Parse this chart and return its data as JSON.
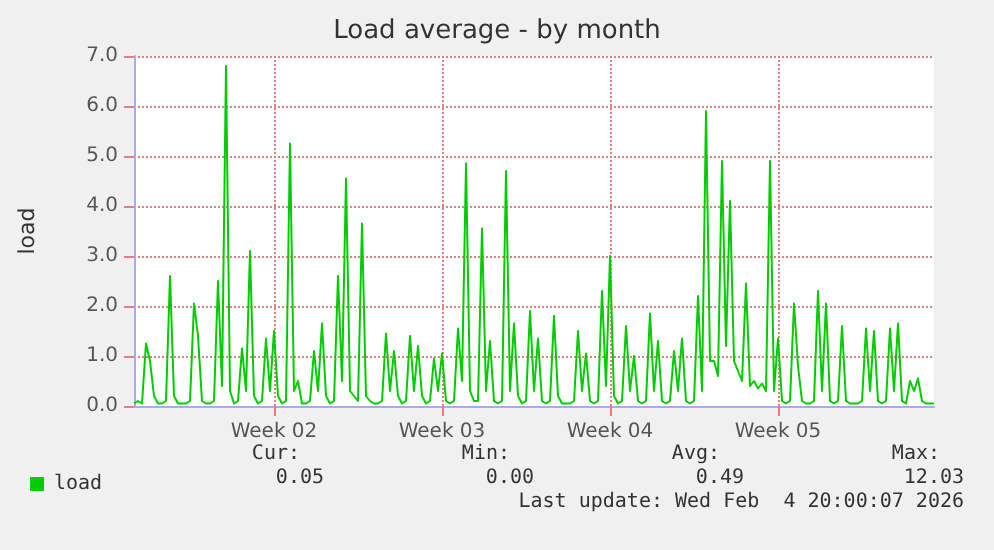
{
  "chart_data": {
    "type": "line",
    "title": "Load average - by month",
    "ylabel": "load",
    "categories": [
      null,
      null,
      null,
      null,
      null,
      null,
      null,
      null,
      null,
      null,
      null,
      null,
      null,
      null,
      null,
      null,
      null,
      null,
      null,
      null,
      null,
      null,
      null,
      null,
      null,
      null,
      null,
      null,
      null,
      null,
      null,
      null,
      null,
      null,
      null,
      "Week 02",
      null,
      null,
      null,
      null,
      null,
      null,
      null,
      null,
      null,
      null,
      null,
      null,
      null,
      null,
      null,
      null,
      null,
      null,
      null,
      null,
      null,
      null,
      null,
      null,
      null,
      null,
      null,
      null,
      null,
      null,
      null,
      null,
      null,
      null,
      null,
      null,
      null,
      null,
      null,
      null,
      null,
      "Week 03",
      null,
      null,
      null,
      null,
      null,
      null,
      null,
      null,
      null,
      null,
      null,
      null,
      null,
      null,
      null,
      null,
      null,
      null,
      null,
      null,
      null,
      null,
      null,
      null,
      null,
      null,
      null,
      null,
      null,
      null,
      null,
      null,
      null,
      null,
      null,
      null,
      null,
      null,
      null,
      null,
      null,
      "Week 04",
      null,
      null,
      null,
      null,
      null,
      null,
      null,
      null,
      null,
      null,
      null,
      null,
      null,
      null,
      null,
      null,
      null,
      null,
      null,
      null,
      null,
      null,
      null,
      null,
      null,
      null,
      null,
      null,
      null,
      null,
      null,
      null,
      null,
      null,
      null,
      null,
      null,
      null,
      null,
      null,
      null,
      "Week 05",
      null,
      null,
      null,
      null,
      null,
      null,
      null,
      null,
      null,
      null,
      null,
      null,
      null,
      null,
      null,
      null,
      null,
      null,
      null,
      null,
      null,
      null,
      null,
      null,
      null,
      null,
      null,
      null,
      null,
      null,
      null,
      null,
      null,
      null,
      null,
      null,
      null,
      null,
      null
    ],
    "series": [
      {
        "name": "load",
        "color": "#00cc00",
        "values": [
          0.05,
          0.1,
          0.05,
          1.25,
          0.9,
          0.2,
          0.05,
          0.05,
          0.1,
          2.6,
          0.2,
          0.05,
          0.05,
          0.05,
          0.1,
          2.05,
          1.4,
          0.1,
          0.05,
          0.05,
          0.1,
          2.5,
          0.4,
          6.8,
          0.3,
          0.05,
          0.1,
          1.15,
          0.3,
          3.1,
          0.2,
          0.05,
          0.1,
          1.35,
          0.3,
          1.5,
          0.2,
          0.05,
          0.1,
          5.25,
          0.3,
          0.5,
          0.05,
          0.05,
          0.1,
          1.1,
          0.3,
          1.65,
          0.2,
          0.05,
          0.1,
          2.6,
          0.5,
          4.55,
          0.3,
          0.2,
          0.1,
          3.65,
          0.2,
          0.1,
          0.05,
          0.05,
          0.1,
          1.45,
          0.3,
          1.1,
          0.2,
          0.05,
          0.1,
          1.4,
          0.3,
          1.2,
          0.2,
          0.05,
          0.1,
          0.95,
          0.3,
          1.05,
          0.1,
          0.05,
          0.1,
          1.55,
          0.5,
          4.85,
          0.3,
          0.1,
          0.1,
          3.55,
          0.3,
          1.3,
          0.1,
          0.05,
          0.1,
          4.7,
          0.3,
          1.65,
          0.2,
          0.05,
          0.1,
          1.9,
          0.3,
          1.35,
          0.1,
          0.05,
          0.1,
          1.8,
          0.2,
          0.05,
          0.05,
          0.05,
          0.1,
          1.5,
          0.3,
          1.05,
          0.1,
          0.05,
          0.1,
          2.3,
          0.4,
          3.0,
          0.2,
          0.05,
          0.1,
          1.6,
          0.3,
          1.0,
          0.1,
          0.05,
          0.1,
          1.85,
          0.3,
          1.3,
          0.1,
          0.05,
          0.1,
          1.1,
          0.3,
          1.35,
          0.1,
          0.05,
          0.1,
          2.2,
          0.3,
          5.9,
          0.9,
          0.9,
          0.6,
          4.9,
          1.2,
          4.1,
          0.9,
          0.7,
          0.5,
          2.45,
          0.4,
          0.5,
          0.35,
          0.45,
          0.3,
          4.9,
          0.3,
          1.35,
          0.1,
          0.05,
          0.1,
          2.05,
          0.8,
          0.1,
          0.05,
          0.05,
          0.1,
          2.3,
          0.3,
          2.05,
          0.1,
          0.05,
          0.1,
          1.6,
          0.1,
          0.05,
          0.05,
          0.05,
          0.1,
          1.55,
          0.3,
          1.5,
          0.1,
          0.05,
          0.1,
          1.55,
          0.3,
          1.65,
          0.1,
          0.05,
          0.5,
          0.3,
          0.55,
          0.1,
          0.05,
          0.05,
          0.05
        ]
      }
    ],
    "ylim": [
      0,
      7
    ],
    "yticks": [
      {
        "value": 0,
        "label": "0.0"
      },
      {
        "value": 1,
        "label": "1.0"
      },
      {
        "value": 2,
        "label": "2.0"
      },
      {
        "value": 3,
        "label": "3.0"
      },
      {
        "value": 4,
        "label": "4.0"
      },
      {
        "value": 5,
        "label": "5.0"
      },
      {
        "value": 6,
        "label": "6.0"
      },
      {
        "value": 7,
        "label": "7.0"
      }
    ],
    "grid": true,
    "legend": "bottom left",
    "marker": "none",
    "line_style": "solid",
    "annotations": [
      "Cur:",
      "0.05",
      "Min:",
      "0.00",
      "Avg:",
      "0.49",
      "Max:",
      "12.03",
      "Last update: Wed Feb  4 20:00:07 2026"
    ]
  }
}
